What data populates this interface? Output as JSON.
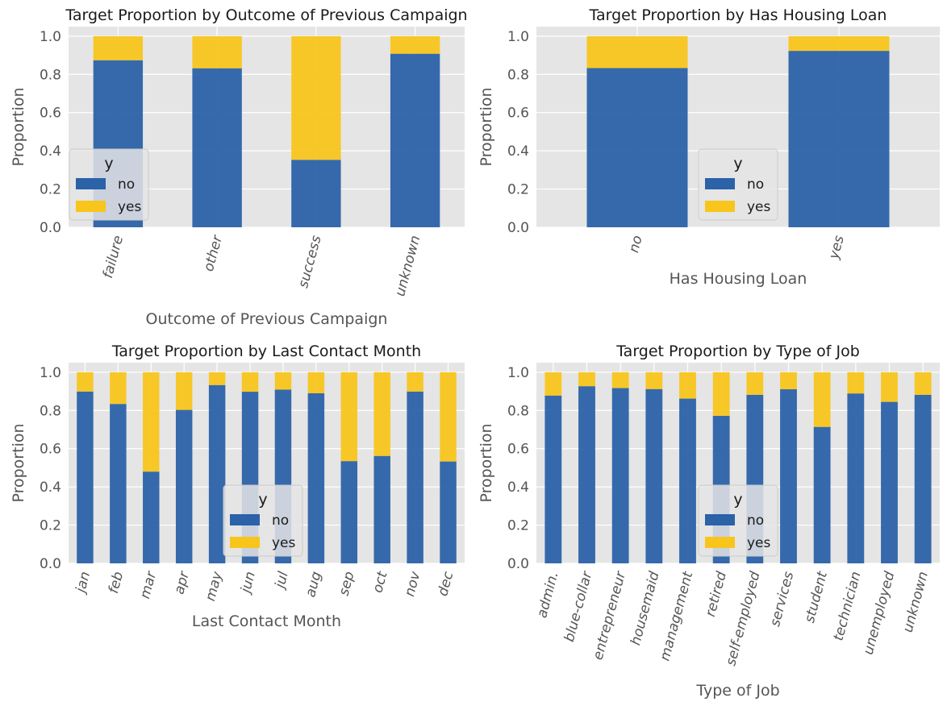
{
  "colors": {
    "no": "#2b62a8",
    "yes": "#f8c51c",
    "plot_bg": "#e5e5e5",
    "grid": "#ffffff",
    "legend_bg": "#e5e5e5",
    "legend_border": "#cccccc"
  },
  "chart_data": [
    {
      "type": "bar",
      "stacked": true,
      "title": "Target Proportion by Outcome of Previous Campaign",
      "xlabel": "Outcome of Previous Campaign",
      "ylabel": "Proportion",
      "ylim": [
        0,
        1.05
      ],
      "yticks": [
        "0.0",
        "0.2",
        "0.4",
        "0.6",
        "0.8",
        "1.0"
      ],
      "grid": true,
      "legend": {
        "title": "y",
        "entries": [
          "no",
          "yes"
        ],
        "placement": "center-left"
      },
      "categories": [
        "failure",
        "other",
        "success",
        "unknown"
      ],
      "series": [
        {
          "name": "no",
          "values": [
            0.874,
            0.832,
            0.353,
            0.908
          ]
        },
        {
          "name": "yes",
          "values": [
            0.126,
            0.168,
            0.647,
            0.092
          ]
        }
      ]
    },
    {
      "type": "bar",
      "stacked": true,
      "title": "Target Proportion by Has Housing Loan",
      "xlabel": "Has Housing Loan",
      "ylabel": "Proportion",
      "ylim": [
        0,
        1.05
      ],
      "yticks": [
        "0.0",
        "0.2",
        "0.4",
        "0.6",
        "0.8",
        "1.0"
      ],
      "grid": true,
      "legend": {
        "title": "y",
        "entries": [
          "no",
          "yes"
        ],
        "placement": "center"
      },
      "categories": [
        "no",
        "yes"
      ],
      "series": [
        {
          "name": "no",
          "values": [
            0.833,
            0.923
          ]
        },
        {
          "name": "yes",
          "values": [
            0.167,
            0.077
          ]
        }
      ]
    },
    {
      "type": "bar",
      "stacked": true,
      "title": "Target Proportion by Last Contact Month",
      "xlabel": "Last Contact Month",
      "ylabel": "Proportion",
      "ylim": [
        0,
        1.05
      ],
      "yticks": [
        "0.0",
        "0.2",
        "0.4",
        "0.6",
        "0.8",
        "1.0"
      ],
      "grid": true,
      "legend": {
        "title": "y",
        "entries": [
          "no",
          "yes"
        ],
        "placement": "lower-center"
      },
      "categories": [
        "jan",
        "feb",
        "mar",
        "apr",
        "may",
        "jun",
        "jul",
        "aug",
        "sep",
        "oct",
        "nov",
        "dec"
      ],
      "series": [
        {
          "name": "no",
          "values": [
            0.899,
            0.834,
            0.48,
            0.803,
            0.933,
            0.898,
            0.909,
            0.89,
            0.535,
            0.562,
            0.899,
            0.533
          ]
        },
        {
          "name": "yes",
          "values": [
            0.101,
            0.166,
            0.52,
            0.197,
            0.067,
            0.102,
            0.091,
            0.11,
            0.465,
            0.438,
            0.101,
            0.467
          ]
        }
      ]
    },
    {
      "type": "bar",
      "stacked": true,
      "title": "Target Proportion by Type of Job",
      "xlabel": "Type of Job",
      "ylabel": "Proportion",
      "ylim": [
        0,
        1.05
      ],
      "yticks": [
        "0.0",
        "0.2",
        "0.4",
        "0.6",
        "0.8",
        "1.0"
      ],
      "grid": true,
      "legend": {
        "title": "y",
        "entries": [
          "no",
          "yes"
        ],
        "placement": "lower-center"
      },
      "categories": [
        "admin.",
        "blue-collar",
        "entrepreneur",
        "housemaid",
        "management",
        "retired",
        "self-employed",
        "services",
        "student",
        "technician",
        "unemployed",
        "unknown"
      ],
      "series": [
        {
          "name": "no",
          "values": [
            0.878,
            0.927,
            0.917,
            0.912,
            0.862,
            0.772,
            0.882,
            0.911,
            0.714,
            0.889,
            0.845,
            0.882
          ]
        },
        {
          "name": "yes",
          "values": [
            0.122,
            0.073,
            0.083,
            0.088,
            0.138,
            0.228,
            0.118,
            0.089,
            0.286,
            0.111,
            0.155,
            0.118
          ]
        }
      ]
    }
  ]
}
